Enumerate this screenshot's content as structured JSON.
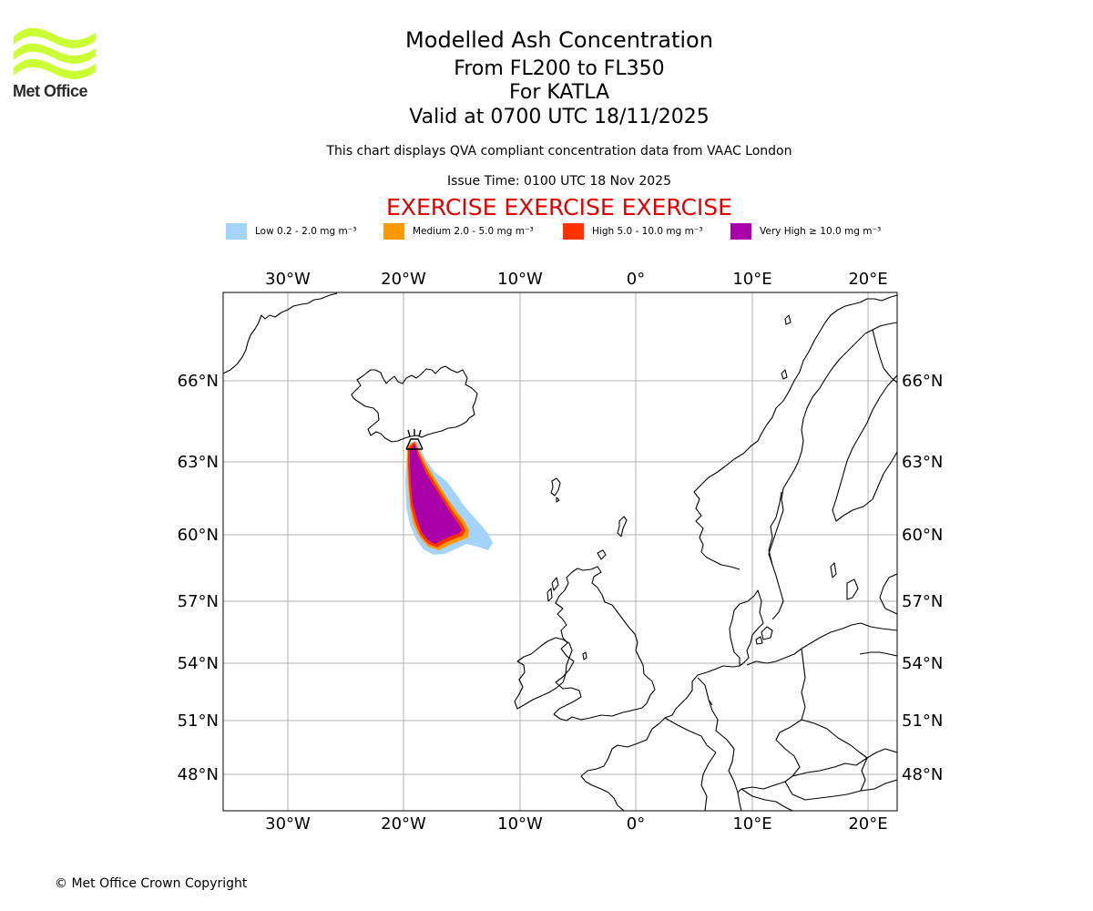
{
  "logo": {
    "text": "Met Office",
    "color": "#ccff33"
  },
  "title": {
    "main": "Modelled Ash Concentration",
    "levels": "From FL200 to FL350",
    "volcano": "For KATLA",
    "valid": "Valid at 0700 UTC 18/11/2025"
  },
  "subtitle": "This chart displays QVA compliant concentration data from VAAC London",
  "issue_time": "Issue Time: 0100 UTC 18 Nov 2025",
  "exercise_banner": "EXERCISE EXERCISE EXERCISE",
  "legend": [
    {
      "label": "Low 0.2 - 2.0 mg m⁻³",
      "color": "#a3d4ff"
    },
    {
      "label": "Medium 2.0 - 5.0 mg m⁻³",
      "color": "#ff9900"
    },
    {
      "label": "High 5.0 - 10.0 mg m⁻³",
      "color": "#ff3300"
    },
    {
      "label": "Very High ≥ 10.0 mg m⁻³",
      "color": "#aa00aa"
    }
  ],
  "map": {
    "lon_ticks": [
      "30°W",
      "20°W",
      "10°W",
      "0°",
      "10°E",
      "20°E"
    ],
    "lat_ticks": [
      "66°N",
      "63°N",
      "60°N",
      "57°N",
      "54°N",
      "51°N",
      "48°N"
    ],
    "gridline_color": "#b0b0b0",
    "volcano_icon": "volcano-icon"
  },
  "copyright": "© Met Office Crown Copyright"
}
